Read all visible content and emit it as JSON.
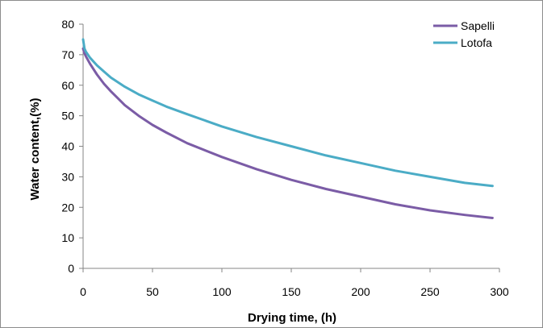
{
  "chart_data": {
    "type": "line",
    "title": "",
    "xlabel": "Drying time, (h)",
    "ylabel": "Water content,(%)",
    "xlim": [
      0,
      300
    ],
    "ylim": [
      0,
      80
    ],
    "x_ticks": [
      0,
      50,
      100,
      150,
      200,
      250,
      300
    ],
    "y_ticks": [
      0,
      10,
      20,
      30,
      40,
      50,
      60,
      70,
      80
    ],
    "grid": false,
    "legend_position": "top-right",
    "series": [
      {
        "name": "Sapelli",
        "color": "#7b5ca6",
        "x": [
          0,
          1,
          2,
          5,
          10,
          15,
          20,
          30,
          40,
          50,
          60,
          75,
          100,
          125,
          150,
          175,
          200,
          225,
          250,
          275,
          295
        ],
        "y": [
          72,
          70.5,
          69.5,
          67,
          63.5,
          60.5,
          58,
          53.5,
          50,
          47,
          44.5,
          41,
          36.5,
          32.5,
          29,
          26,
          23.5,
          21,
          19,
          17.5,
          16.5
        ]
      },
      {
        "name": "Lotofa",
        "color": "#4bacc6",
        "x": [
          0,
          1,
          2,
          5,
          10,
          15,
          20,
          30,
          40,
          50,
          60,
          75,
          100,
          125,
          150,
          175,
          200,
          225,
          250,
          275,
          295
        ],
        "y": [
          75,
          72,
          71,
          69,
          66.5,
          64.5,
          62.5,
          59.5,
          57,
          55,
          53,
          50.5,
          46.5,
          43,
          40,
          37,
          34.5,
          32,
          30,
          28,
          27
        ]
      }
    ]
  }
}
